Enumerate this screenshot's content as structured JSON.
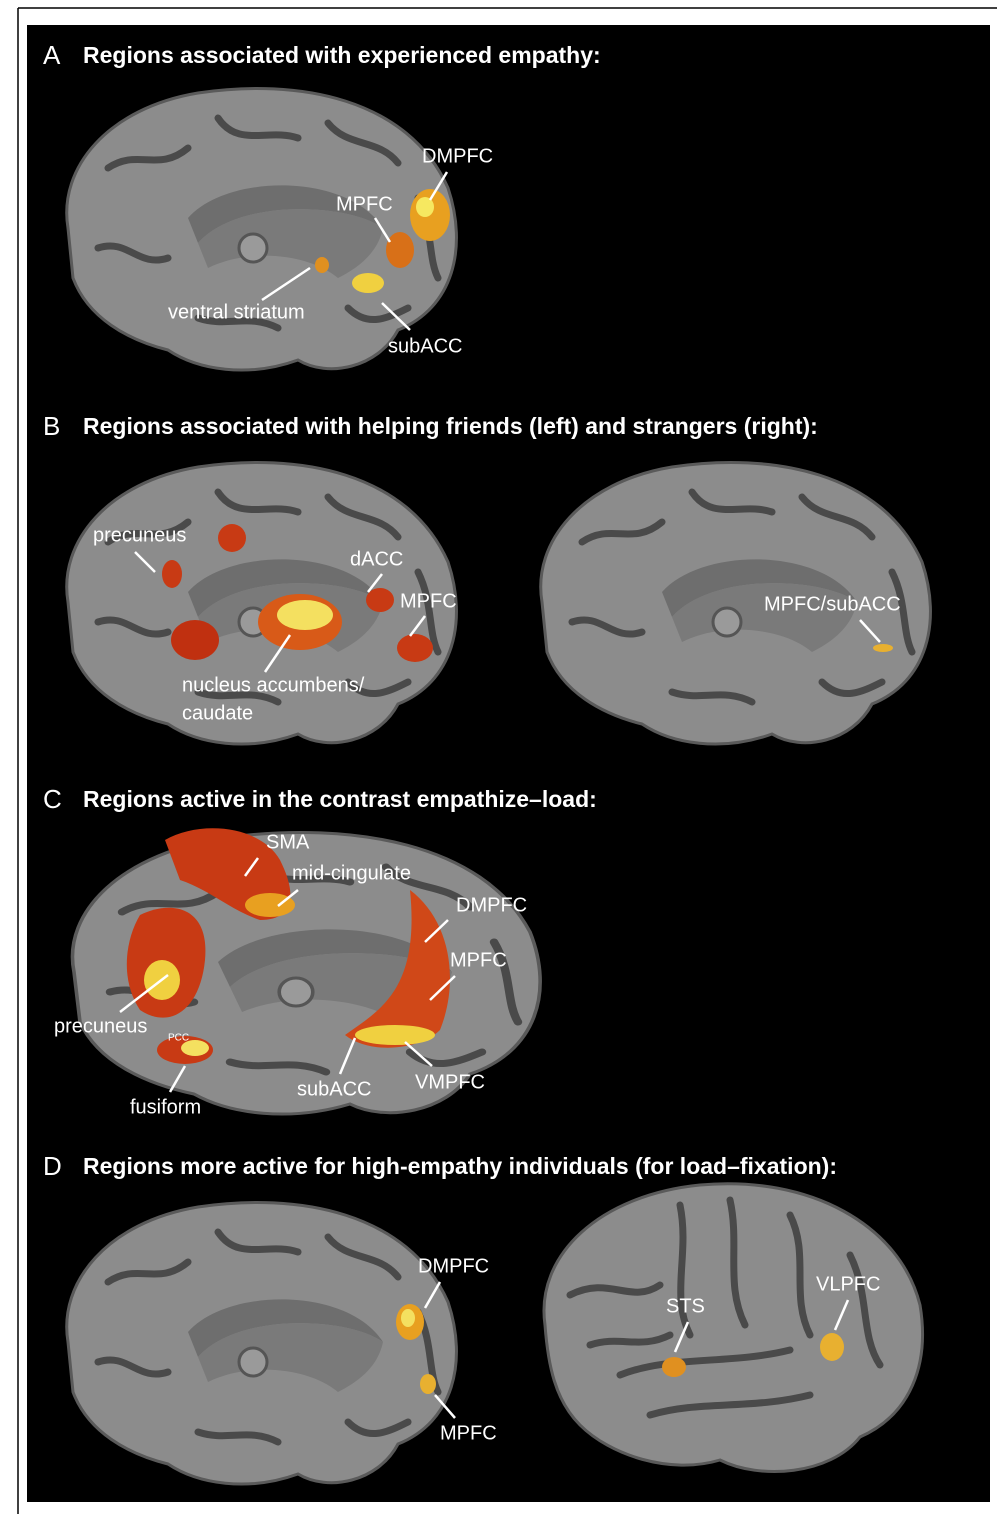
{
  "panels": [
    {
      "letter": "A",
      "title": "Regions associated with experienced empathy:",
      "labels": [
        "DMPFC",
        "MPFC",
        "ventral striatum",
        "subACC"
      ]
    },
    {
      "letter": "B",
      "title": "Regions associated with helping friends (left) and strangers (right):",
      "labels": [
        "precuneus",
        "dACC",
        "MPFC",
        "nucleus accumbens/",
        "caudate",
        "MPFC/subACC"
      ]
    },
    {
      "letter": "C",
      "title": "Regions active in the contrast empathize–load:",
      "labels": [
        "SMA",
        "mid-cingulate",
        "DMPFC",
        "MPFC",
        "precuneus",
        "PCC",
        "fusiform",
        "subACC",
        "VMPFC"
      ]
    },
    {
      "letter": "D",
      "title": "Regions more active for high-empathy individuals (for load–fixation):",
      "labels": [
        "DMPFC",
        "MPFC",
        "STS",
        "VLPFC"
      ]
    }
  ]
}
